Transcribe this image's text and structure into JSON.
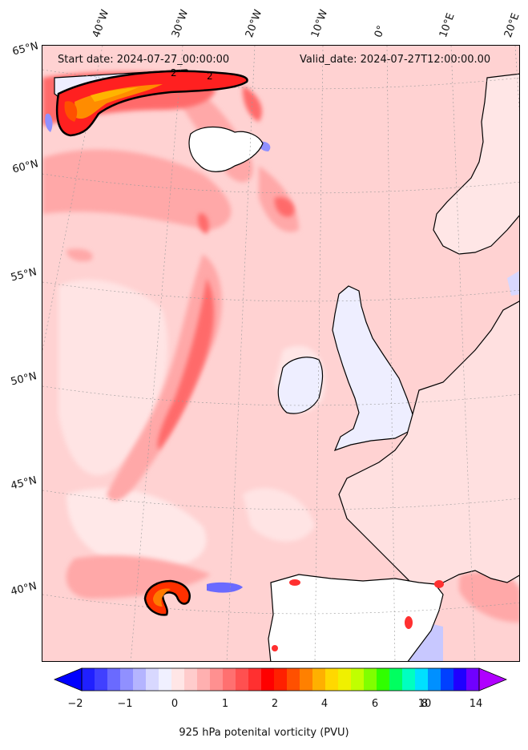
{
  "header": {
    "start_date": "Start date: 2024-07-27_00:00:00",
    "valid_date": "Valid_date: 2024-07-27T12:00:00.00"
  },
  "longitude_labels": [
    "40°W",
    "30°W",
    "20°W",
    "10°W",
    "0°",
    "10°E",
    "20°E"
  ],
  "latitude_labels": [
    "65°N",
    "60°N",
    "55°N",
    "50°N",
    "45°N",
    "40°N"
  ],
  "contour_label": "2",
  "colorbar": {
    "label": "925 hPa potenital vorticity (PVU)",
    "tick_labels": [
      "−2",
      "−1",
      "0",
      "1",
      "2",
      "4",
      "6",
      "8",
      "10",
      "14"
    ],
    "colors": [
      "#0000ff",
      "#2020ff",
      "#4040ff",
      "#6a6aff",
      "#9090ff",
      "#b4b4ff",
      "#d8d8ff",
      "#f0f0ff",
      "#ffe6e6",
      "#ffcccc",
      "#ffb0b0",
      "#ff9090",
      "#ff7070",
      "#ff5050",
      "#ff3030",
      "#ff0000",
      "#ff2000",
      "#ff5000",
      "#ff8000",
      "#ffb000",
      "#ffd800",
      "#f0f000",
      "#c0ff00",
      "#80ff00",
      "#30ff00",
      "#00ff60",
      "#00ffc0",
      "#00e0ff",
      "#0090ff",
      "#0040ff",
      "#2000ff",
      "#7000ff",
      "#b000ff"
    ]
  }
}
